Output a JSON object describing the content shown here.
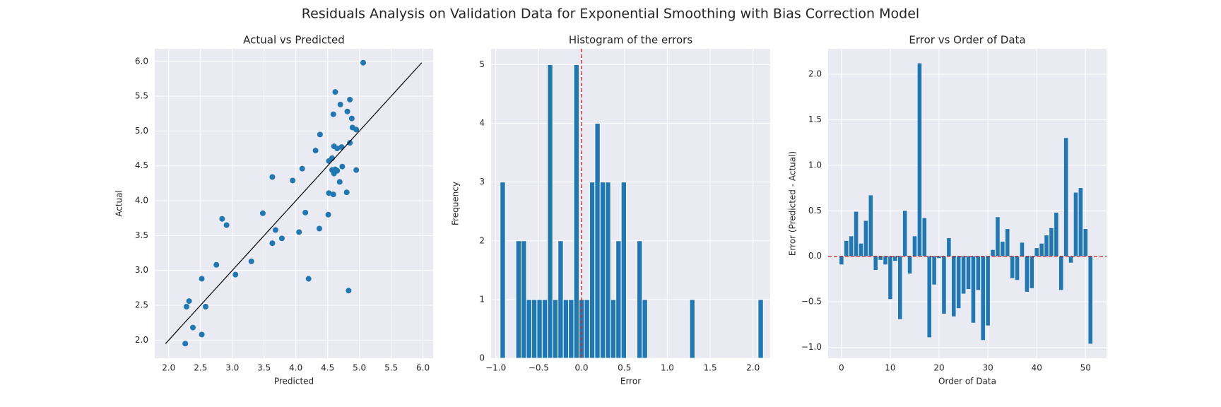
{
  "title": "Residuals Analysis on Validation Data for Exponential Smoothing with Bias Correction Model",
  "chart_data": [
    {
      "type": "scatter",
      "title": "Actual vs Predicted",
      "xlabel": "Predicted",
      "ylabel": "Actual",
      "color": "#1f77b4",
      "grid": true,
      "facecolor": "#eaeaf2",
      "xlim": [
        1.78,
        6.16
      ],
      "ylim": [
        1.74,
        6.18
      ],
      "xticks": [
        {
          "value": 2,
          "label": "2.0"
        },
        {
          "value": 2.5,
          "label": "2.5"
        },
        {
          "value": 3,
          "label": "3.0"
        },
        {
          "value": 3.5,
          "label": "3.5"
        },
        {
          "value": 4,
          "label": "4.0"
        },
        {
          "value": 4.5,
          "label": "4.5"
        },
        {
          "value": 5,
          "label": "5.0"
        },
        {
          "value": 5.5,
          "label": "5.5"
        },
        {
          "value": 6,
          "label": "6.0"
        }
      ],
      "yticks": [
        {
          "value": 2,
          "label": "2.0"
        },
        {
          "value": 2.5,
          "label": "2.5"
        },
        {
          "value": 3,
          "label": "3.0"
        },
        {
          "value": 3.5,
          "label": "3.5"
        },
        {
          "value": 4,
          "label": "4.0"
        },
        {
          "value": 4.5,
          "label": "4.5"
        },
        {
          "value": 5,
          "label": "5.0"
        },
        {
          "value": 5.5,
          "label": "5.5"
        },
        {
          "value": 6,
          "label": "6.0"
        }
      ],
      "x": [
        5.06,
        4.62,
        4.85,
        4.7,
        4.81,
        4.59,
        4.88,
        4.89,
        4.95,
        4.38,
        4.6,
        4.72,
        4.65,
        4.31,
        4.85,
        4.57,
        4.52,
        4.1,
        4.73,
        4.95,
        4.57,
        4.62,
        4.65,
        4.6,
        3.63,
        3.95,
        4.69,
        4.52,
        4.59,
        4.8,
        4.15,
        3.48,
        4.51,
        2.84,
        2.91,
        3.68,
        4.05,
        4.37,
        3.78,
        3.63,
        3.3,
        2.75,
        3.05,
        4.2,
        2.52,
        4.83,
        2.32,
        2.28,
        2.58,
        2.38,
        2.52,
        2.26
      ],
      "values": [
        5.98,
        5.56,
        5.45,
        5.38,
        5.28,
        5.24,
        5.18,
        5.05,
        5.02,
        4.95,
        4.78,
        4.77,
        4.75,
        4.72,
        4.83,
        4.61,
        4.57,
        4.46,
        4.49,
        4.44,
        4.44,
        4.45,
        4.43,
        4.39,
        4.34,
        4.29,
        4.27,
        4.11,
        4.09,
        4.12,
        3.83,
        3.82,
        3.8,
        3.74,
        3.65,
        3.58,
        3.55,
        3.6,
        3.46,
        3.39,
        3.13,
        3.08,
        2.94,
        2.88,
        2.88,
        2.71,
        2.56,
        2.48,
        2.48,
        2.18,
        2.08,
        1.95
      ],
      "fit_line": {
        "x": [
          1.95,
          5.98
        ],
        "y": [
          1.95,
          5.98
        ],
        "color": "#000000"
      }
    },
    {
      "type": "histogram",
      "title": "Histogram of the errors",
      "xlabel": "Error",
      "ylabel": "Frequency",
      "color": "#1f77b4",
      "grid": true,
      "facecolor": "#eaeaf2",
      "xlim": [
        -1.055,
        2.2
      ],
      "ylim": [
        0,
        5.27
      ],
      "xticks": [
        {
          "value": -1,
          "label": "−1.0"
        },
        {
          "value": -0.5,
          "label": "−0.5"
        },
        {
          "value": 0,
          "label": "0.0"
        },
        {
          "value": 0.5,
          "label": "0.5"
        },
        {
          "value": 1,
          "label": "1.0"
        },
        {
          "value": 1.5,
          "label": "1.5"
        },
        {
          "value": 2,
          "label": "2.0"
        }
      ],
      "yticks": [
        0,
        1,
        2,
        3,
        4,
        5
      ],
      "bins": [
        -0.95,
        -0.8886,
        -0.8272,
        -0.7658,
        -0.7044,
        -0.643,
        -0.5816,
        -0.5202,
        -0.4588,
        -0.3974,
        -0.336,
        -0.2746,
        -0.2132,
        -0.1518,
        -0.0904,
        -0.029,
        0.0324,
        0.0938,
        0.1552,
        0.2166,
        0.278,
        0.3394,
        0.4008,
        0.4622,
        0.5236,
        0.585,
        0.6464,
        0.7078,
        0.7692,
        0.8306,
        0.892,
        0.9534,
        1.0148,
        1.0762,
        1.1376,
        1.199,
        1.2604,
        1.3218,
        1.3832,
        1.4446,
        1.506,
        1.5674,
        1.6288,
        1.6902,
        1.7516,
        1.813,
        1.8744,
        1.9358,
        1.9972,
        2.0586,
        2.12
      ],
      "values": [
        3,
        0,
        0,
        2,
        2,
        1,
        1,
        1,
        1,
        5,
        1,
        2,
        1,
        1,
        5,
        1,
        1,
        3,
        4,
        3,
        3,
        1,
        2,
        3,
        0,
        0,
        2,
        1,
        0,
        0,
        0,
        0,
        0,
        0,
        0,
        0,
        1,
        0,
        0,
        0,
        0,
        0,
        0,
        0,
        0,
        0,
        0,
        0,
        0,
        1
      ],
      "vline": 0,
      "line_color": "#d62728"
    },
    {
      "type": "bar",
      "title": "Error vs Order of Data",
      "xlabel": "Order of Data",
      "ylabel": "Error (Predicted - Actual)",
      "color": "#1f77b4",
      "grid": true,
      "facecolor": "#eaeaf2",
      "xlim": [
        -2.73,
        54.3
      ],
      "ylim": [
        -1.12,
        2.28
      ],
      "xticks": [
        0,
        10,
        20,
        30,
        40,
        50
      ],
      "yticks": [
        {
          "value": -1,
          "label": "−1.0"
        },
        {
          "value": -0.5,
          "label": "−0.5"
        },
        {
          "value": 0,
          "label": "0.0"
        },
        {
          "value": 0.5,
          "label": "0.5"
        },
        {
          "value": 1,
          "label": "1.0"
        },
        {
          "value": 1.5,
          "label": "1.5"
        },
        {
          "value": 2,
          "label": "2.0"
        }
      ],
      "x": [
        0,
        1,
        2,
        3,
        4,
        5,
        6,
        7,
        8,
        9,
        10,
        11,
        12,
        13,
        14,
        15,
        16,
        17,
        18,
        19,
        20,
        21,
        22,
        23,
        24,
        25,
        26,
        27,
        28,
        29,
        30,
        31,
        32,
        33,
        34,
        35,
        36,
        37,
        38,
        39,
        40,
        41,
        42,
        43,
        44,
        45,
        46,
        47,
        48,
        49,
        50,
        51
      ],
      "values": [
        -0.09,
        0.17,
        0.22,
        0.49,
        0.14,
        0.39,
        0.67,
        -0.15,
        -0.04,
        -0.09,
        -0.47,
        -0.05,
        -0.69,
        0.5,
        -0.19,
        0.22,
        2.12,
        0.42,
        -0.89,
        -0.31,
        -0.02,
        -0.63,
        0.2,
        -0.66,
        -0.57,
        -0.41,
        -0.36,
        -0.73,
        -0.37,
        -0.92,
        -0.76,
        0.07,
        0.43,
        0.16,
        0.3,
        -0.24,
        -0.26,
        0.15,
        -0.39,
        -0.35,
        0.09,
        0.14,
        0.23,
        0.31,
        0.48,
        -0.37,
        1.3,
        -0.07,
        0.7,
        0.75,
        0.3,
        -0.96
      ],
      "hline": 0,
      "line_color": "#d62728"
    }
  ]
}
